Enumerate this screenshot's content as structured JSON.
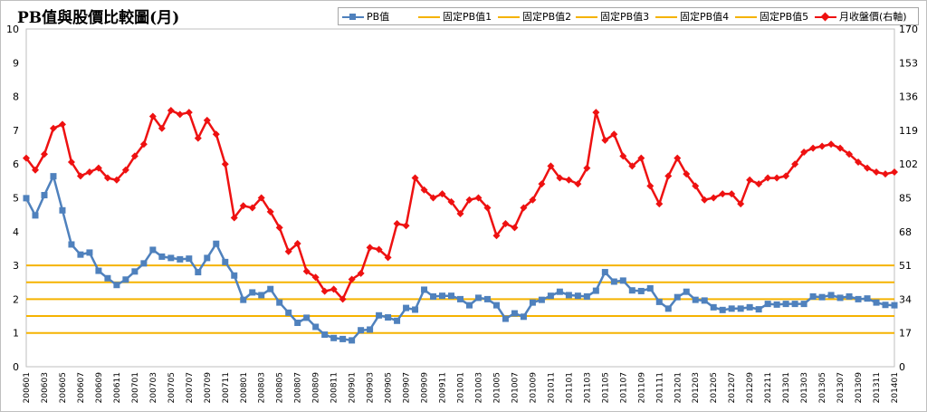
{
  "chart_data": {
    "type": "line",
    "title": "PB值與股價比較圖(月)",
    "xlabel": "",
    "ylabel": "",
    "ylim": [
      0,
      10
    ],
    "y2lim": [
      0,
      170
    ],
    "yticks": [
      "0",
      "1",
      "2",
      "3",
      "4",
      "5",
      "6",
      "7",
      "8",
      "9",
      "10"
    ],
    "y2ticks": [
      "0",
      "17",
      "34",
      "51",
      "68",
      "85",
      "102",
      "119",
      "136",
      "153",
      "170"
    ],
    "legend_position": "top-right",
    "grid": false,
    "months": [
      "200601",
      "200602",
      "200603",
      "200604",
      "200605",
      "200606",
      "200607",
      "200608",
      "200609",
      "200610",
      "200611",
      "200612",
      "200701",
      "200702",
      "200703",
      "200704",
      "200705",
      "200706",
      "200707",
      "200708",
      "200709",
      "200710",
      "200711",
      "200712",
      "200801",
      "200802",
      "200803",
      "200804",
      "200805",
      "200806",
      "200807",
      "200808",
      "200809",
      "200810",
      "200811",
      "200812",
      "200901",
      "200902",
      "200903",
      "200904",
      "200905",
      "200906",
      "200907",
      "200908",
      "200909",
      "200910",
      "200911",
      "200912",
      "201001",
      "201002",
      "201003",
      "201004",
      "201005",
      "201006",
      "201007",
      "201008",
      "201009",
      "201010",
      "201011",
      "201012",
      "201101",
      "201102",
      "201103",
      "201104",
      "201105",
      "201106",
      "201107",
      "201108",
      "201109",
      "201110",
      "201111",
      "201112",
      "201201",
      "201202",
      "201203",
      "201204",
      "201205",
      "201206",
      "201207",
      "201208",
      "201209",
      "201210",
      "201211",
      "201212",
      "201301",
      "201302",
      "201303",
      "201304",
      "201305",
      "201306",
      "201307",
      "201308",
      "201309",
      "201310",
      "201311",
      "201312",
      "201401"
    ],
    "x_labels": [
      "200601",
      "200603",
      "200605",
      "200607",
      "200609",
      "200611",
      "200701",
      "200703",
      "200705",
      "200707",
      "200709",
      "200711",
      "200801",
      "200803",
      "200805",
      "200807",
      "200809",
      "200811",
      "200901",
      "200903",
      "200905",
      "200907",
      "200909",
      "200911",
      "201001",
      "201003",
      "201005",
      "201007",
      "201009",
      "201011",
      "201101",
      "201103",
      "201105",
      "201107",
      "201109",
      "201111",
      "201201",
      "201203",
      "201205",
      "201207",
      "201209",
      "201211",
      "201301",
      "201303",
      "201305",
      "201307",
      "201309",
      "201311",
      "201401"
    ],
    "series": [
      {
        "name": "PB值",
        "color": "#4f81bd",
        "marker": "square",
        "axis": "left",
        "values": [
          4.99,
          4.48,
          5.08,
          5.64,
          4.63,
          3.62,
          3.32,
          3.38,
          2.84,
          2.62,
          2.42,
          2.58,
          2.82,
          3.06,
          3.46,
          3.26,
          3.22,
          3.18,
          3.2,
          2.8,
          3.22,
          3.64,
          3.1,
          2.7,
          1.98,
          2.2,
          2.12,
          2.3,
          1.9,
          1.6,
          1.3,
          1.45,
          1.18,
          0.95,
          0.85,
          0.82,
          0.78,
          1.08,
          1.1,
          1.52,
          1.46,
          1.36,
          1.74,
          1.69,
          2.28,
          2.08,
          2.1,
          2.1,
          2.0,
          1.82,
          2.04,
          2.0,
          1.82,
          1.42,
          1.58,
          1.48,
          1.9,
          1.98,
          2.1,
          2.22,
          2.12,
          2.1,
          2.08,
          2.25,
          2.8,
          2.52,
          2.55,
          2.26,
          2.24,
          2.32,
          1.92,
          1.72,
          2.06,
          2.22,
          1.98,
          1.96,
          1.76,
          1.68,
          1.72,
          1.72,
          1.76,
          1.7,
          1.86,
          1.84,
          1.86,
          1.86,
          1.86,
          2.08,
          2.06,
          2.12,
          2.04,
          2.08,
          2.0,
          2.02,
          1.9,
          1.83,
          1.82
        ]
      },
      {
        "name": "固定PB值1",
        "color": "#f5b301",
        "axis": "left",
        "constant": 1.0
      },
      {
        "name": "固定PB值2",
        "color": "#f5b301",
        "axis": "left",
        "constant": 1.5
      },
      {
        "name": "固定PB值3",
        "color": "#f5b301",
        "axis": "left",
        "constant": 2.0
      },
      {
        "name": "固定PB值4",
        "color": "#f5b301",
        "axis": "left",
        "constant": 2.5
      },
      {
        "name": "固定PB值5",
        "color": "#f5b301",
        "axis": "left",
        "constant": 3.0
      },
      {
        "name": "月收盤價(右軸)",
        "color": "#ee1111",
        "marker": "diamond",
        "axis": "right",
        "values": [
          105,
          99,
          107,
          120,
          122,
          103,
          96,
          98,
          100,
          95,
          94,
          99,
          106,
          112,
          126,
          120,
          129,
          127,
          128,
          115,
          124,
          117,
          102,
          75,
          81,
          80,
          85,
          78,
          70,
          58,
          62,
          48,
          45,
          38,
          39,
          34,
          44,
          47,
          60,
          59,
          55,
          72,
          71,
          95,
          89,
          85,
          87,
          83,
          77,
          84,
          85,
          80,
          66,
          72,
          70,
          80,
          84,
          92,
          101,
          95,
          94,
          92,
          100,
          128,
          114,
          117,
          106,
          101,
          105,
          91,
          82,
          96,
          105,
          97,
          91,
          84,
          85,
          87,
          87,
          82,
          94,
          92,
          95,
          95,
          96,
          102,
          108,
          110,
          111,
          112,
          110,
          107,
          103,
          100,
          98,
          97,
          98
        ]
      }
    ]
  }
}
